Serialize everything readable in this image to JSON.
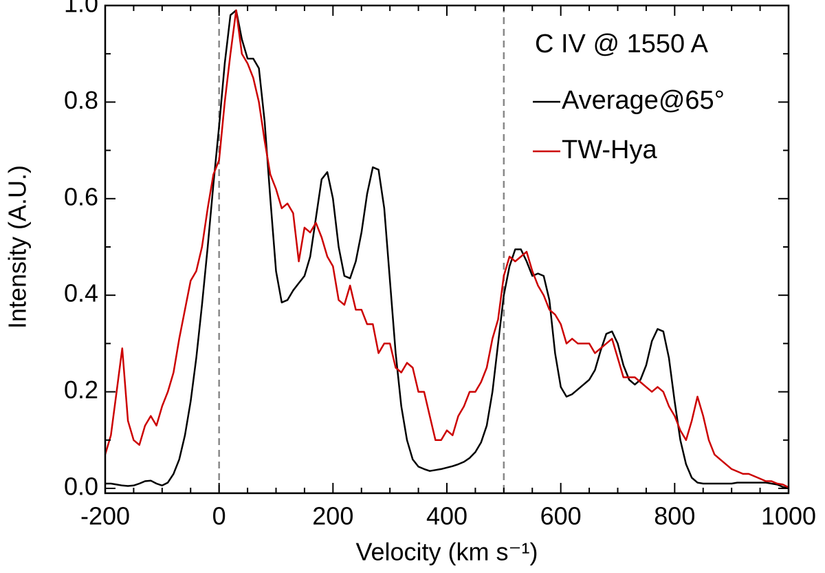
{
  "chart_data": {
    "type": "line",
    "annotation": "C IV @ 1550 A",
    "xlabel": "Velocity (km s⁻¹)",
    "ylabel": "Intensity (A.U.)",
    "xlim": [
      -200,
      1000
    ],
    "ylim": [
      -0.01,
      1.0
    ],
    "xticks": [
      -200,
      0,
      200,
      400,
      600,
      800,
      1000
    ],
    "yticks": [
      {
        "value": 0,
        "label": "0.0"
      },
      0.2,
      0.4,
      0.6,
      0.8,
      {
        "value": 1,
        "label": "1.0"
      }
    ],
    "vlines": [
      0,
      500
    ],
    "legend": "upper right",
    "x": [
      -200,
      -190,
      -180,
      -170,
      -160,
      -150,
      -140,
      -130,
      -120,
      -110,
      -100,
      -90,
      -80,
      -70,
      -60,
      -50,
      -40,
      -30,
      -20,
      -10,
      0,
      10,
      20,
      30,
      40,
      50,
      60,
      70,
      80,
      90,
      100,
      110,
      120,
      130,
      140,
      150,
      160,
      170,
      180,
      190,
      200,
      210,
      220,
      230,
      240,
      250,
      260,
      270,
      280,
      290,
      300,
      310,
      320,
      330,
      340,
      350,
      360,
      370,
      380,
      390,
      400,
      410,
      420,
      430,
      440,
      450,
      460,
      470,
      480,
      490,
      500,
      510,
      520,
      530,
      540,
      550,
      560,
      570,
      580,
      590,
      600,
      610,
      620,
      630,
      640,
      650,
      660,
      670,
      680,
      690,
      700,
      710,
      720,
      730,
      740,
      750,
      760,
      770,
      780,
      790,
      800,
      810,
      820,
      830,
      840,
      850,
      860,
      870,
      880,
      890,
      900,
      910,
      920,
      930,
      940,
      950,
      960,
      970,
      980,
      990,
      1000
    ],
    "series": [
      {
        "name": "Average@65°",
        "color": "#000000",
        "values": [
          0.01,
          0.01,
          0.008,
          0.006,
          0.005,
          0.006,
          0.01,
          0.015,
          0.016,
          0.01,
          0.006,
          0.012,
          0.03,
          0.06,
          0.11,
          0.18,
          0.27,
          0.38,
          0.5,
          0.63,
          0.75,
          0.88,
          0.98,
          0.99,
          0.93,
          0.89,
          0.89,
          0.87,
          0.76,
          0.6,
          0.45,
          0.385,
          0.39,
          0.41,
          0.425,
          0.44,
          0.48,
          0.56,
          0.64,
          0.655,
          0.6,
          0.5,
          0.44,
          0.435,
          0.47,
          0.53,
          0.61,
          0.665,
          0.66,
          0.58,
          0.43,
          0.28,
          0.17,
          0.1,
          0.06,
          0.045,
          0.04,
          0.036,
          0.038,
          0.04,
          0.043,
          0.046,
          0.05,
          0.055,
          0.063,
          0.075,
          0.095,
          0.13,
          0.2,
          0.3,
          0.4,
          0.46,
          0.495,
          0.495,
          0.47,
          0.44,
          0.445,
          0.44,
          0.39,
          0.28,
          0.21,
          0.19,
          0.195,
          0.205,
          0.215,
          0.225,
          0.245,
          0.285,
          0.32,
          0.325,
          0.3,
          0.255,
          0.225,
          0.215,
          0.225,
          0.255,
          0.305,
          0.33,
          0.325,
          0.27,
          0.18,
          0.1,
          0.05,
          0.022,
          0.012,
          0.01,
          0.01,
          0.01,
          0.01,
          0.01,
          0.01,
          0.012,
          0.012,
          0.012,
          0.012,
          0.012,
          0.012,
          0.01,
          0.008,
          0.003,
          0
        ]
      },
      {
        "name": "TW-Hya",
        "color": "#cc0000",
        "values": [
          0.07,
          0.11,
          0.2,
          0.29,
          0.14,
          0.1,
          0.09,
          0.13,
          0.15,
          0.13,
          0.17,
          0.2,
          0.24,
          0.31,
          0.37,
          0.43,
          0.45,
          0.5,
          0.58,
          0.65,
          0.68,
          0.8,
          0.9,
          0.99,
          0.9,
          0.88,
          0.85,
          0.8,
          0.72,
          0.65,
          0.62,
          0.58,
          0.59,
          0.57,
          0.47,
          0.54,
          0.53,
          0.55,
          0.52,
          0.48,
          0.46,
          0.39,
          0.38,
          0.42,
          0.37,
          0.37,
          0.34,
          0.34,
          0.28,
          0.3,
          0.3,
          0.25,
          0.24,
          0.26,
          0.25,
          0.2,
          0.2,
          0.15,
          0.1,
          0.1,
          0.12,
          0.11,
          0.15,
          0.17,
          0.2,
          0.2,
          0.22,
          0.25,
          0.31,
          0.35,
          0.44,
          0.48,
          0.47,
          0.48,
          0.49,
          0.45,
          0.42,
          0.4,
          0.37,
          0.36,
          0.34,
          0.3,
          0.31,
          0.3,
          0.3,
          0.3,
          0.28,
          0.29,
          0.3,
          0.31,
          0.27,
          0.23,
          0.23,
          0.23,
          0.22,
          0.21,
          0.2,
          0.21,
          0.2,
          0.17,
          0.15,
          0.12,
          0.1,
          0.14,
          0.19,
          0.15,
          0.1,
          0.07,
          0.06,
          0.05,
          0.04,
          0.035,
          0.03,
          0.03,
          0.025,
          0.02,
          0.015,
          0.015,
          0.01,
          0.008,
          0.002
        ]
      }
    ]
  }
}
